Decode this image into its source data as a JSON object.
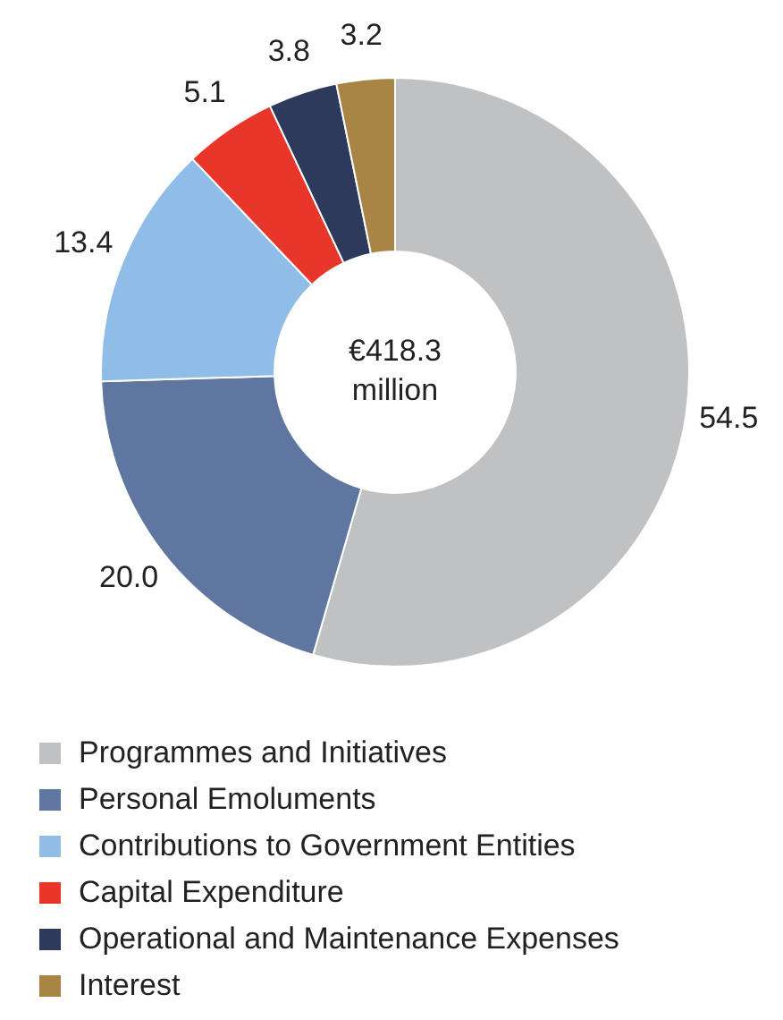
{
  "chart_data": {
    "type": "donut",
    "categories": [
      "Programmes and Initiatives",
      "Personal Emoluments",
      "Contributions to Government Entities",
      "Capital Expenditure",
      "Operational and Maintenance Expenses",
      "Interest"
    ],
    "values": [
      54.5,
      20.0,
      13.4,
      5.1,
      3.8,
      3.2
    ],
    "value_labels": [
      "54.5",
      "20.0",
      "13.4",
      "5.1",
      "3.8",
      "3.2"
    ],
    "colors": [
      "#c0c1c3",
      "#5f77a0",
      "#8fbde8",
      "#e8372a",
      "#2e3a5c",
      "#a88545"
    ],
    "annotations": [
      "€418.3 million"
    ],
    "legend": "bottom"
  }
}
